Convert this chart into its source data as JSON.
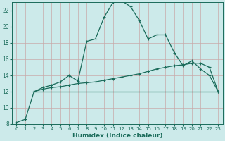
{
  "xlabel": "Humidex (Indice chaleur)",
  "background_color": "#cceaea",
  "grid_color": "#b8d8d8",
  "line_color": "#1a6b5a",
  "xlim": [
    -0.5,
    23.5
  ],
  "ylim": [
    8,
    23
  ],
  "yticks": [
    8,
    10,
    12,
    14,
    16,
    18,
    20,
    22
  ],
  "xticks": [
    0,
    1,
    2,
    3,
    4,
    5,
    6,
    7,
    8,
    9,
    10,
    11,
    12,
    13,
    14,
    15,
    16,
    17,
    18,
    19,
    20,
    21,
    22,
    23
  ],
  "series1_x": [
    0,
    1,
    2,
    3,
    4,
    5,
    6,
    7,
    8,
    9,
    10,
    11,
    12,
    13,
    14,
    15,
    16,
    17,
    18,
    19,
    20,
    21,
    22,
    23
  ],
  "series1_y": [
    8.2,
    8.6,
    12.0,
    12.5,
    12.8,
    13.2,
    14.0,
    13.3,
    18.2,
    18.5,
    21.2,
    23.0,
    23.2,
    22.5,
    20.8,
    18.5,
    19.0,
    19.0,
    16.8,
    15.2,
    15.8,
    14.8,
    14.0,
    12.0
  ],
  "series2_x": [
    2,
    3,
    4,
    5,
    6,
    7,
    8,
    9,
    10,
    11,
    12,
    13,
    14,
    15,
    16,
    17,
    18,
    19,
    20,
    21,
    22,
    23
  ],
  "series2_y": [
    12.0,
    12.3,
    12.5,
    12.6,
    12.8,
    13.0,
    13.1,
    13.2,
    13.4,
    13.6,
    13.8,
    14.0,
    14.2,
    14.5,
    14.8,
    15.0,
    15.2,
    15.3,
    15.5,
    15.5,
    15.0,
    12.0
  ],
  "series3_x": [
    2,
    23
  ],
  "series3_y": [
    12.0,
    12.0
  ]
}
